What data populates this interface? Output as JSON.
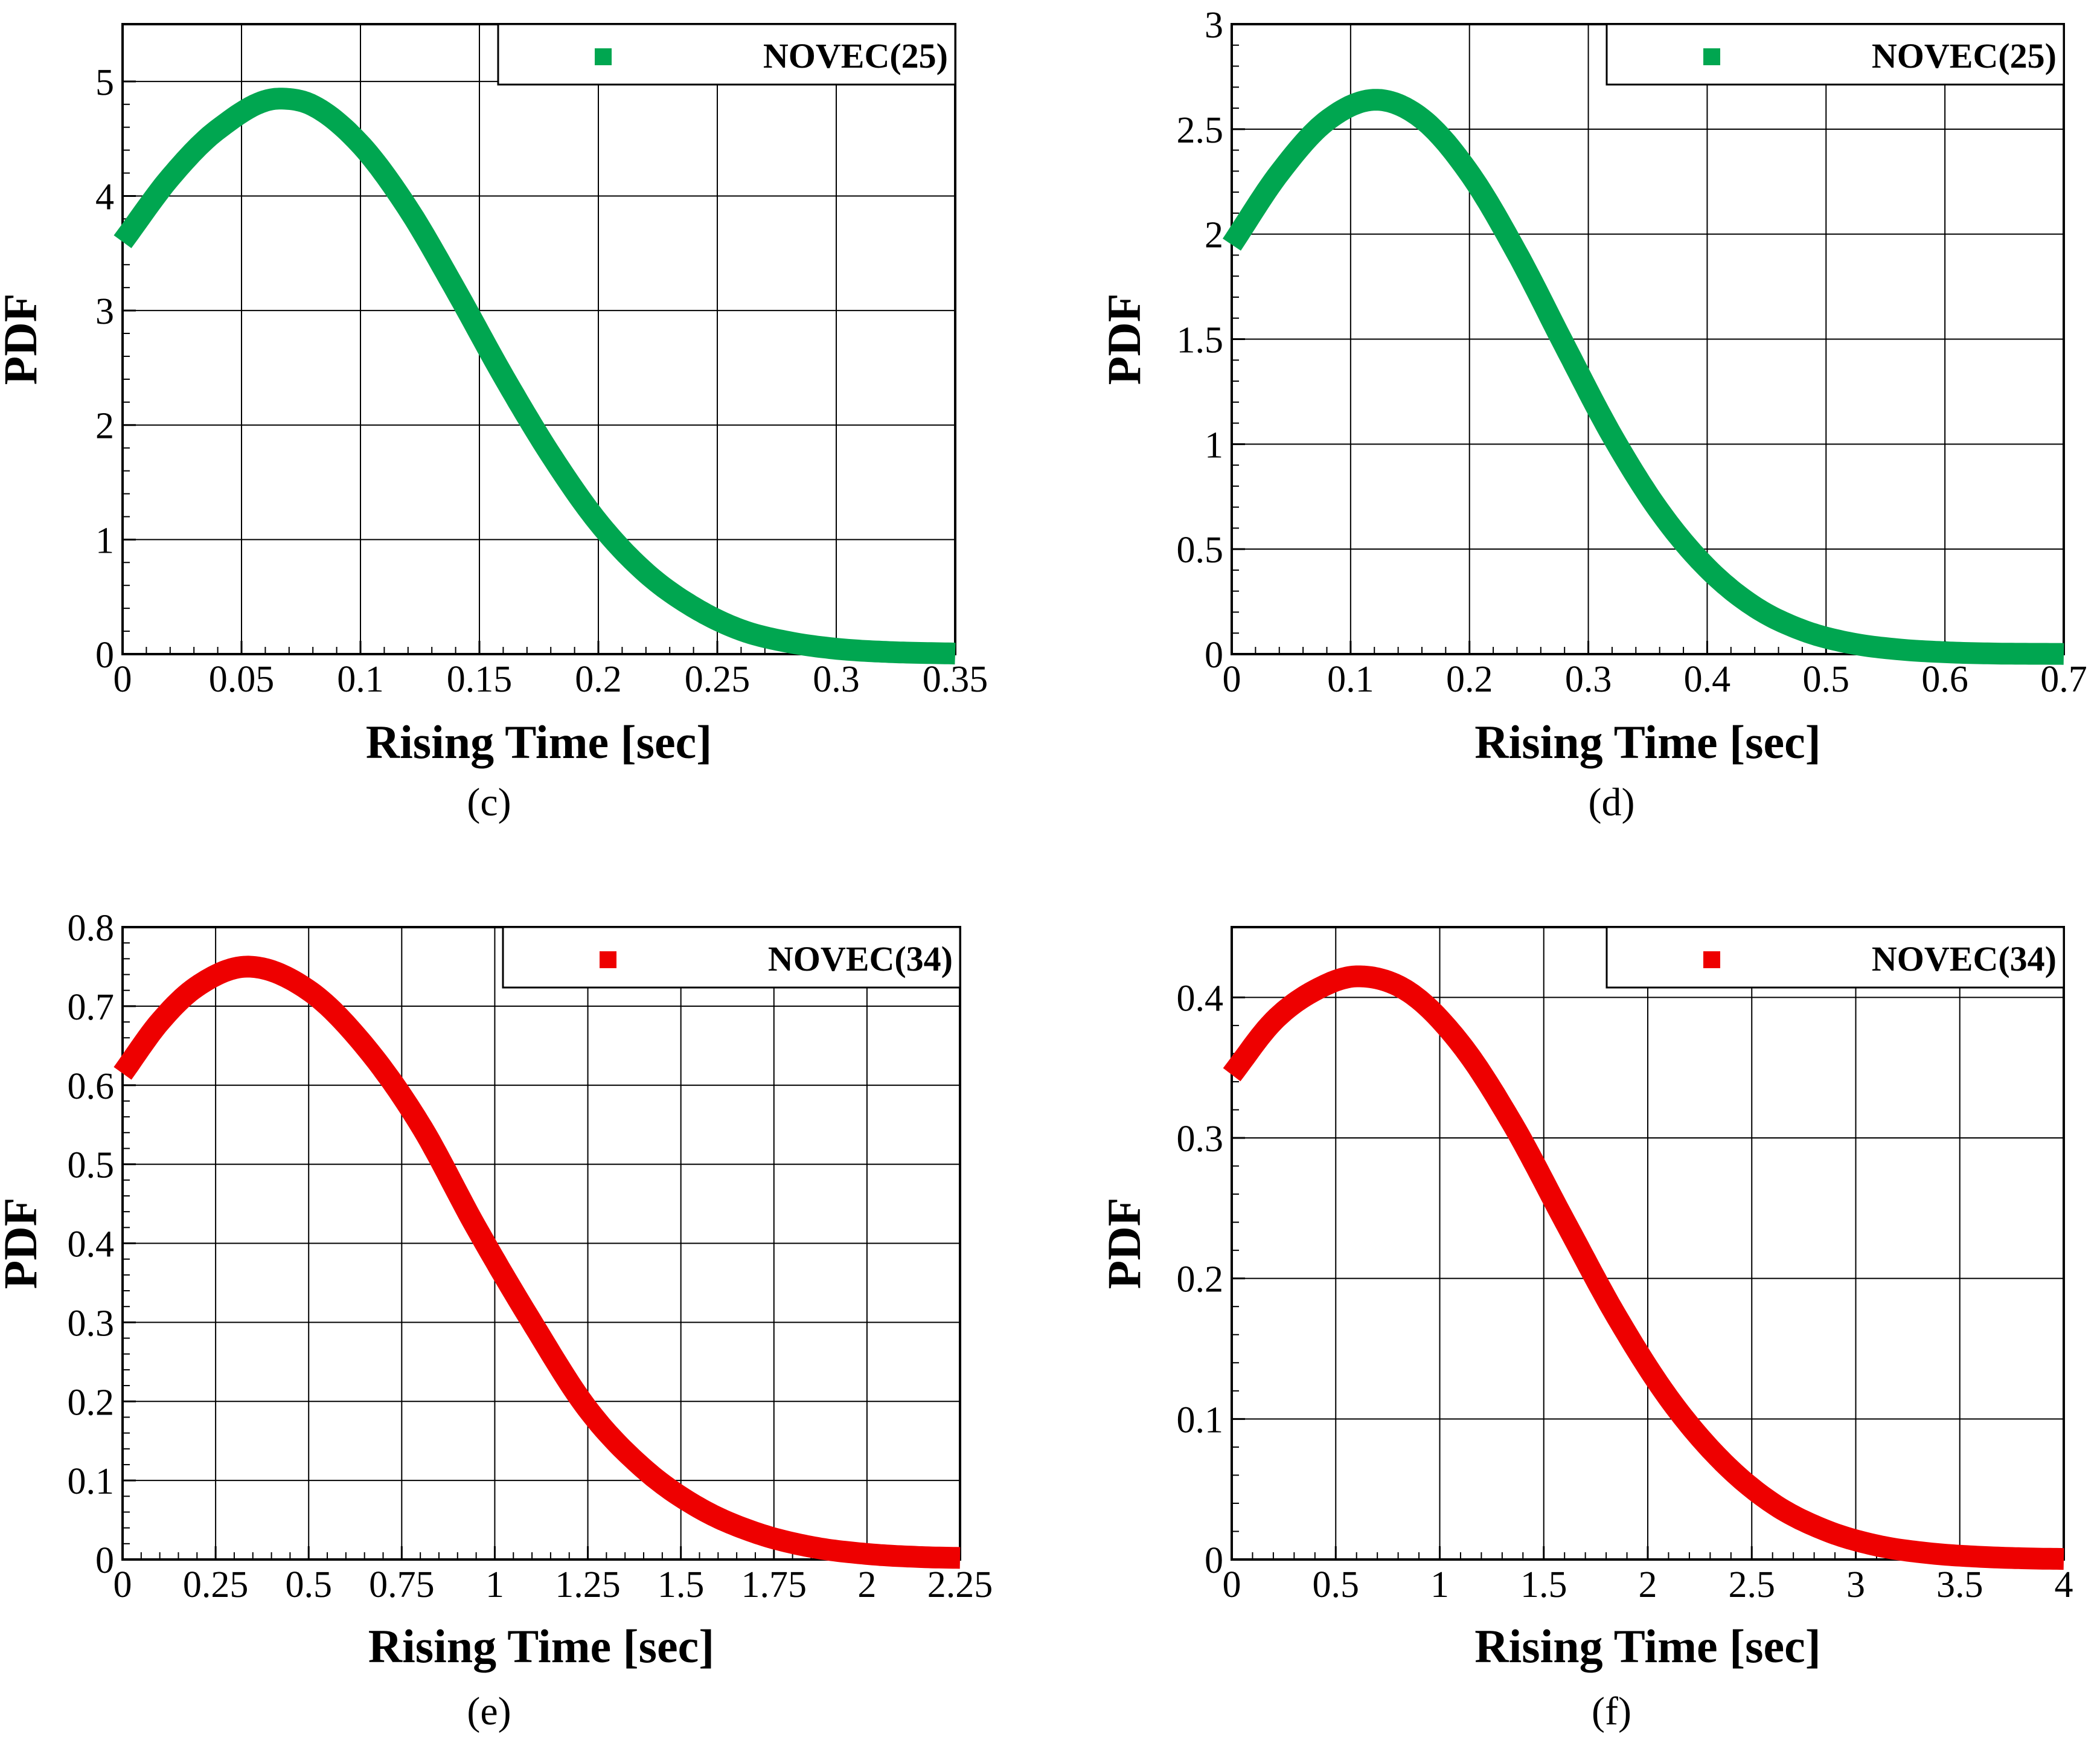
{
  "chart_data": [
    {
      "id": "c",
      "type": "line",
      "caption": "(c)",
      "xlabel": "Rising Time [sec]",
      "ylabel": "PDF",
      "xlim": [
        0,
        0.35
      ],
      "ylim": [
        0,
        5.5
      ],
      "xticks": [
        0,
        0.05,
        0.1,
        0.15,
        0.2,
        0.25,
        0.3,
        0.35
      ],
      "xtick_labels": [
        "0",
        "0.05",
        "0.1",
        "0.15",
        "0.2",
        "0.25",
        "0.3",
        "0.35"
      ],
      "yticks": [
        0,
        1,
        2,
        3,
        4,
        5
      ],
      "ytick_labels": [
        "0",
        "1",
        "2",
        "3",
        "4",
        "5"
      ],
      "grid": true,
      "legend_position": "top-right",
      "series": [
        {
          "name": "NOVEC(25)",
          "color": "#00a650",
          "x": [
            0,
            0.02,
            0.04,
            0.0659,
            0.08,
            0.1,
            0.12,
            0.14,
            0.16,
            0.18,
            0.2,
            0.22,
            0.24,
            0.26,
            0.28,
            0.3,
            0.32,
            0.35
          ],
          "y": [
            3.6,
            4.16,
            4.58,
            4.85,
            4.79,
            4.45,
            3.89,
            3.18,
            2.43,
            1.74,
            1.15,
            0.71,
            0.41,
            0.21,
            0.105,
            0.047,
            0.02,
            0.005
          ]
        }
      ]
    },
    {
      "id": "d",
      "type": "line",
      "caption": "(d)",
      "xlabel": "Rising Time [sec]",
      "ylabel": "PDF",
      "xlim": [
        0,
        0.7
      ],
      "ylim": [
        0,
        3
      ],
      "xticks": [
        0,
        0.1,
        0.2,
        0.3,
        0.4,
        0.5,
        0.6,
        0.7
      ],
      "xtick_labels": [
        "0",
        "0.1",
        "0.2",
        "0.3",
        "0.4",
        "0.5",
        "0.6",
        "0.7"
      ],
      "yticks": [
        0,
        0.5,
        1,
        1.5,
        2,
        2.5,
        3
      ],
      "ytick_labels": [
        "0",
        "0.5",
        "1",
        "1.5",
        "2",
        "2.5",
        "3"
      ],
      "grid": true,
      "legend_position": "top-right",
      "series": [
        {
          "name": "NOVEC(25)",
          "color": "#00a650",
          "x": [
            0,
            0.04,
            0.08,
            0.1213,
            0.16,
            0.2,
            0.24,
            0.28,
            0.32,
            0.36,
            0.4,
            0.44,
            0.48,
            0.52,
            0.56,
            0.6,
            0.64,
            0.7
          ],
          "y": [
            1.95,
            2.29,
            2.54,
            2.64,
            2.55,
            2.29,
            1.91,
            1.47,
            1.04,
            0.68,
            0.41,
            0.225,
            0.114,
            0.053,
            0.023,
            0.009,
            0.003,
            0.001
          ]
        }
      ]
    },
    {
      "id": "e",
      "type": "line",
      "caption": "(e)",
      "xlabel": "Rising Time [sec]",
      "ylabel": "PDF",
      "xlim": [
        0,
        2.25
      ],
      "ylim": [
        0,
        0.8
      ],
      "xticks": [
        0,
        0.25,
        0.5,
        0.75,
        1,
        1.25,
        1.5,
        1.75,
        2,
        2.25
      ],
      "xtick_labels": [
        "0",
        "0.25",
        "0.5",
        "0.75",
        "1",
        "1.25",
        "1.5",
        "1.75",
        "2",
        "2.25"
      ],
      "yticks": [
        0,
        0.1,
        0.2,
        0.3,
        0.4,
        0.5,
        0.6,
        0.7,
        0.8
      ],
      "ytick_labels": [
        "0",
        "0.1",
        "0.2",
        "0.3",
        "0.4",
        "0.5",
        "0.6",
        "0.7",
        "0.8"
      ],
      "grid": true,
      "legend_position": "top-right",
      "series": [
        {
          "name": "NOVEC(34)",
          "color": "#ee0000",
          "x": [
            0,
            0.1,
            0.2,
            0.3357,
            0.5,
            0.65,
            0.8,
            0.95,
            1.1,
            1.25,
            1.4,
            1.55,
            1.7,
            1.85,
            2.0,
            2.15,
            2.25
          ],
          "y": [
            0.615,
            0.68,
            0.725,
            0.75,
            0.72,
            0.65,
            0.55,
            0.42,
            0.3,
            0.19,
            0.115,
            0.065,
            0.034,
            0.016,
            0.007,
            0.003,
            0.002
          ]
        }
      ]
    },
    {
      "id": "f",
      "type": "line",
      "caption": "(f)",
      "xlabel": "Rising Time [sec]",
      "ylabel": "PDF",
      "xlim": [
        0,
        4
      ],
      "ylim": [
        0,
        0.45
      ],
      "xticks": [
        0,
        0.5,
        1,
        1.5,
        2,
        2.5,
        3,
        3.5,
        4
      ],
      "xtick_labels": [
        "0",
        "0.5",
        "1",
        "1.5",
        "2",
        "2.5",
        "3",
        "3.5",
        "4"
      ],
      "yticks": [
        0,
        0.1,
        0.2,
        0.3,
        0.4
      ],
      "ytick_labels": [
        "0",
        "0.1",
        "0.2",
        "0.3",
        "0.4"
      ],
      "grid": true,
      "legend_position": "top-right",
      "series": [
        {
          "name": "NOVEC(34)",
          "color": "#ee0000",
          "x": [
            0,
            0.2,
            0.4,
            0.6068,
            0.85,
            1.1,
            1.35,
            1.6,
            1.85,
            2.1,
            2.35,
            2.6,
            2.85,
            3.1,
            3.35,
            3.6,
            3.85,
            4.0
          ],
          "y": [
            0.345,
            0.383,
            0.405,
            0.415,
            0.404,
            0.367,
            0.31,
            0.241,
            0.173,
            0.115,
            0.071,
            0.04,
            0.021,
            0.01,
            0.0045,
            0.0019,
            0.0007,
            0.0004
          ]
        }
      ]
    }
  ]
}
